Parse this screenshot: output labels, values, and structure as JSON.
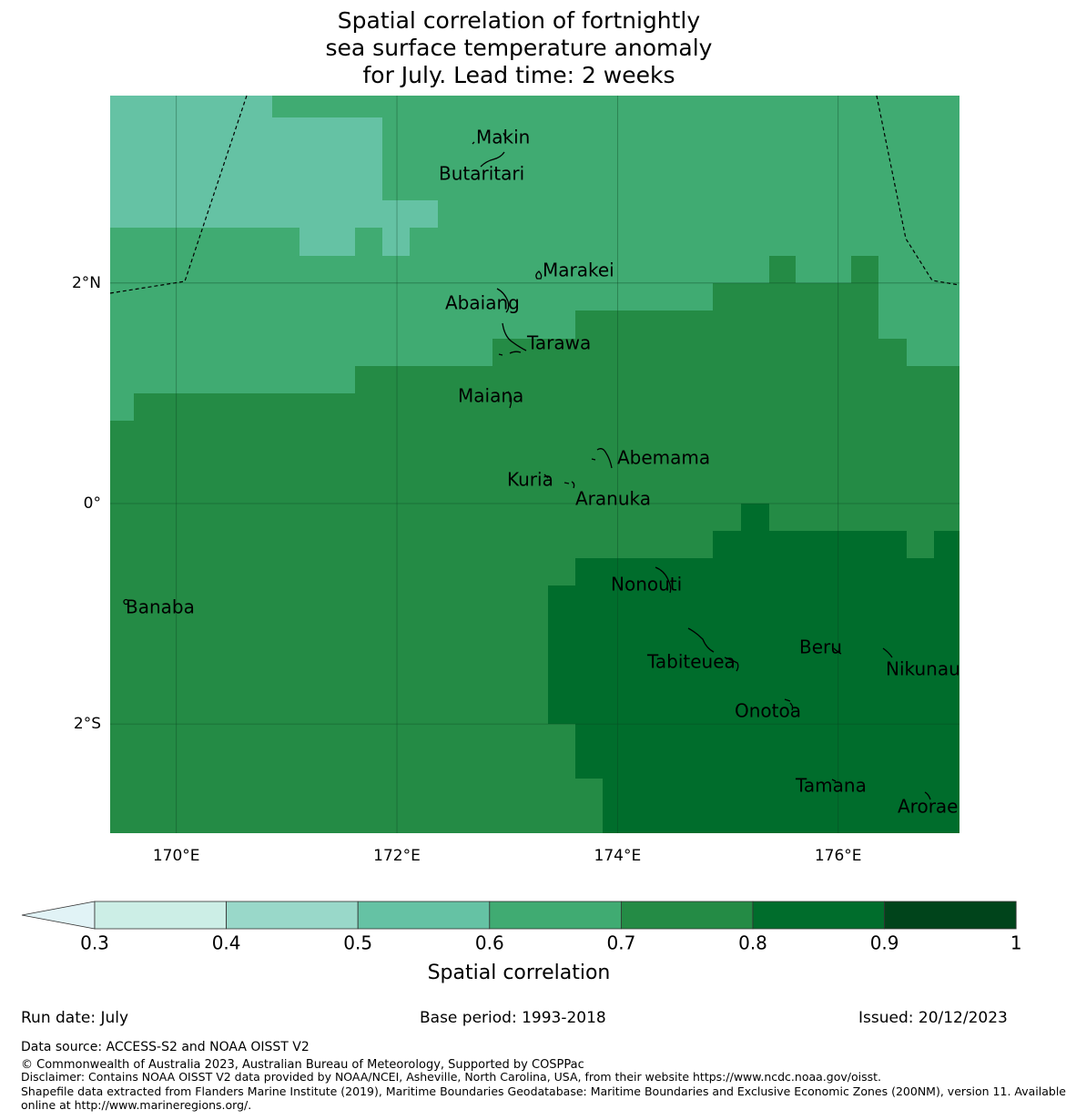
{
  "title": {
    "line1": "Spatial correlation of fortnightly",
    "line2": "sea surface temperature anomaly",
    "line3": "for July. Lead time: 2 weeks"
  },
  "map": {
    "lon_range": [
      169.4,
      177.1
    ],
    "lat_range": [
      -2.99,
      3.7
    ],
    "lon_ticks": [
      {
        "value": 170,
        "label": "170°E"
      },
      {
        "value": 172,
        "label": "172°E"
      },
      {
        "value": 174,
        "label": "174°E"
      },
      {
        "value": 176,
        "label": "176°E"
      }
    ],
    "lat_ticks": [
      {
        "value": 2,
        "label": "2°N"
      },
      {
        "value": 0,
        "label": "0°"
      },
      {
        "value": -2,
        "label": "2°S"
      }
    ],
    "gridlines": true,
    "islands": [
      {
        "name": "Makin",
        "lon": 173.0,
        "lat": 3.3
      },
      {
        "name": "Butaritari",
        "lon": 172.8,
        "lat": 3.05
      },
      {
        "name": "Marakei",
        "lon": 173.35,
        "lat": 2.0
      },
      {
        "name": "Abaiang",
        "lon": 172.95,
        "lat": 1.8
      },
      {
        "name": "Tarawa",
        "lon": 173.1,
        "lat": 1.4
      },
      {
        "name": "Maiana",
        "lon": 173.0,
        "lat": 0.95
      },
      {
        "name": "Abemama",
        "lon": 173.85,
        "lat": 0.4
      },
      {
        "name": "Kuria",
        "lon": 173.4,
        "lat": 0.22
      },
      {
        "name": "Aranuka",
        "lon": 173.6,
        "lat": 0.17
      },
      {
        "name": "Nonouti",
        "lon": 174.4,
        "lat": -0.62
      },
      {
        "name": "Banaba",
        "lon": 169.53,
        "lat": -0.88
      },
      {
        "name": "Tabiteuea",
        "lon": 174.8,
        "lat": -1.35
      },
      {
        "name": "Beru",
        "lon": 176.0,
        "lat": -1.35
      },
      {
        "name": "Nikunau",
        "lon": 176.45,
        "lat": -1.35
      },
      {
        "name": "Onotoa",
        "lon": 175.55,
        "lat": -1.83
      },
      {
        "name": "Tamana",
        "lon": 175.98,
        "lat": -2.5
      },
      {
        "name": "Arorae",
        "lon": 176.82,
        "lat": -2.65
      }
    ],
    "colors": [
      "#ffffff",
      "#e1f3f6",
      "#cceee6",
      "#99d8c9",
      "#65c2a4",
      "#40ab72",
      "#248b45",
      "#006d2c",
      "#00441b"
    ]
  },
  "colorbar": {
    "ticks": [
      "0.3",
      "0.4",
      "0.5",
      "0.6",
      "0.7",
      "0.8",
      "0.9",
      "1"
    ],
    "label": "Spatial correlation",
    "extend_color": "#e1f3f6",
    "colors": [
      "#cceee6",
      "#99d8c9",
      "#65c2a4",
      "#40ab72",
      "#248b45",
      "#006d2c",
      "#00441b"
    ]
  },
  "footer": {
    "run_date": "Run date: July",
    "base_period": "Base period: 1993-2018",
    "issued": "Issued: 20/12/2023",
    "data_source": "Data source: ACCESS-S2 and NOAA OISST V2",
    "copyright": "© Commonwealth of Australia 2023, Australian Bureau of Meteorology, Supported by COSPPac",
    "disclaimer": "Disclaimer: Contains NOAA OISST V2 data provided by NOAA/NCEI, Asheville, North Carolina, USA, from their website https://www.ncdc.noaa.gov/oisst.",
    "shapefile1": "Shapefile data extracted from Flanders Marine Institute (2019), Maritime Boundaries Geodatabase: Maritime Boundaries and Exclusive Economic Zones (200NM), version 11. Available",
    "shapefile2": "online at http://www.marineregions.org/."
  }
}
